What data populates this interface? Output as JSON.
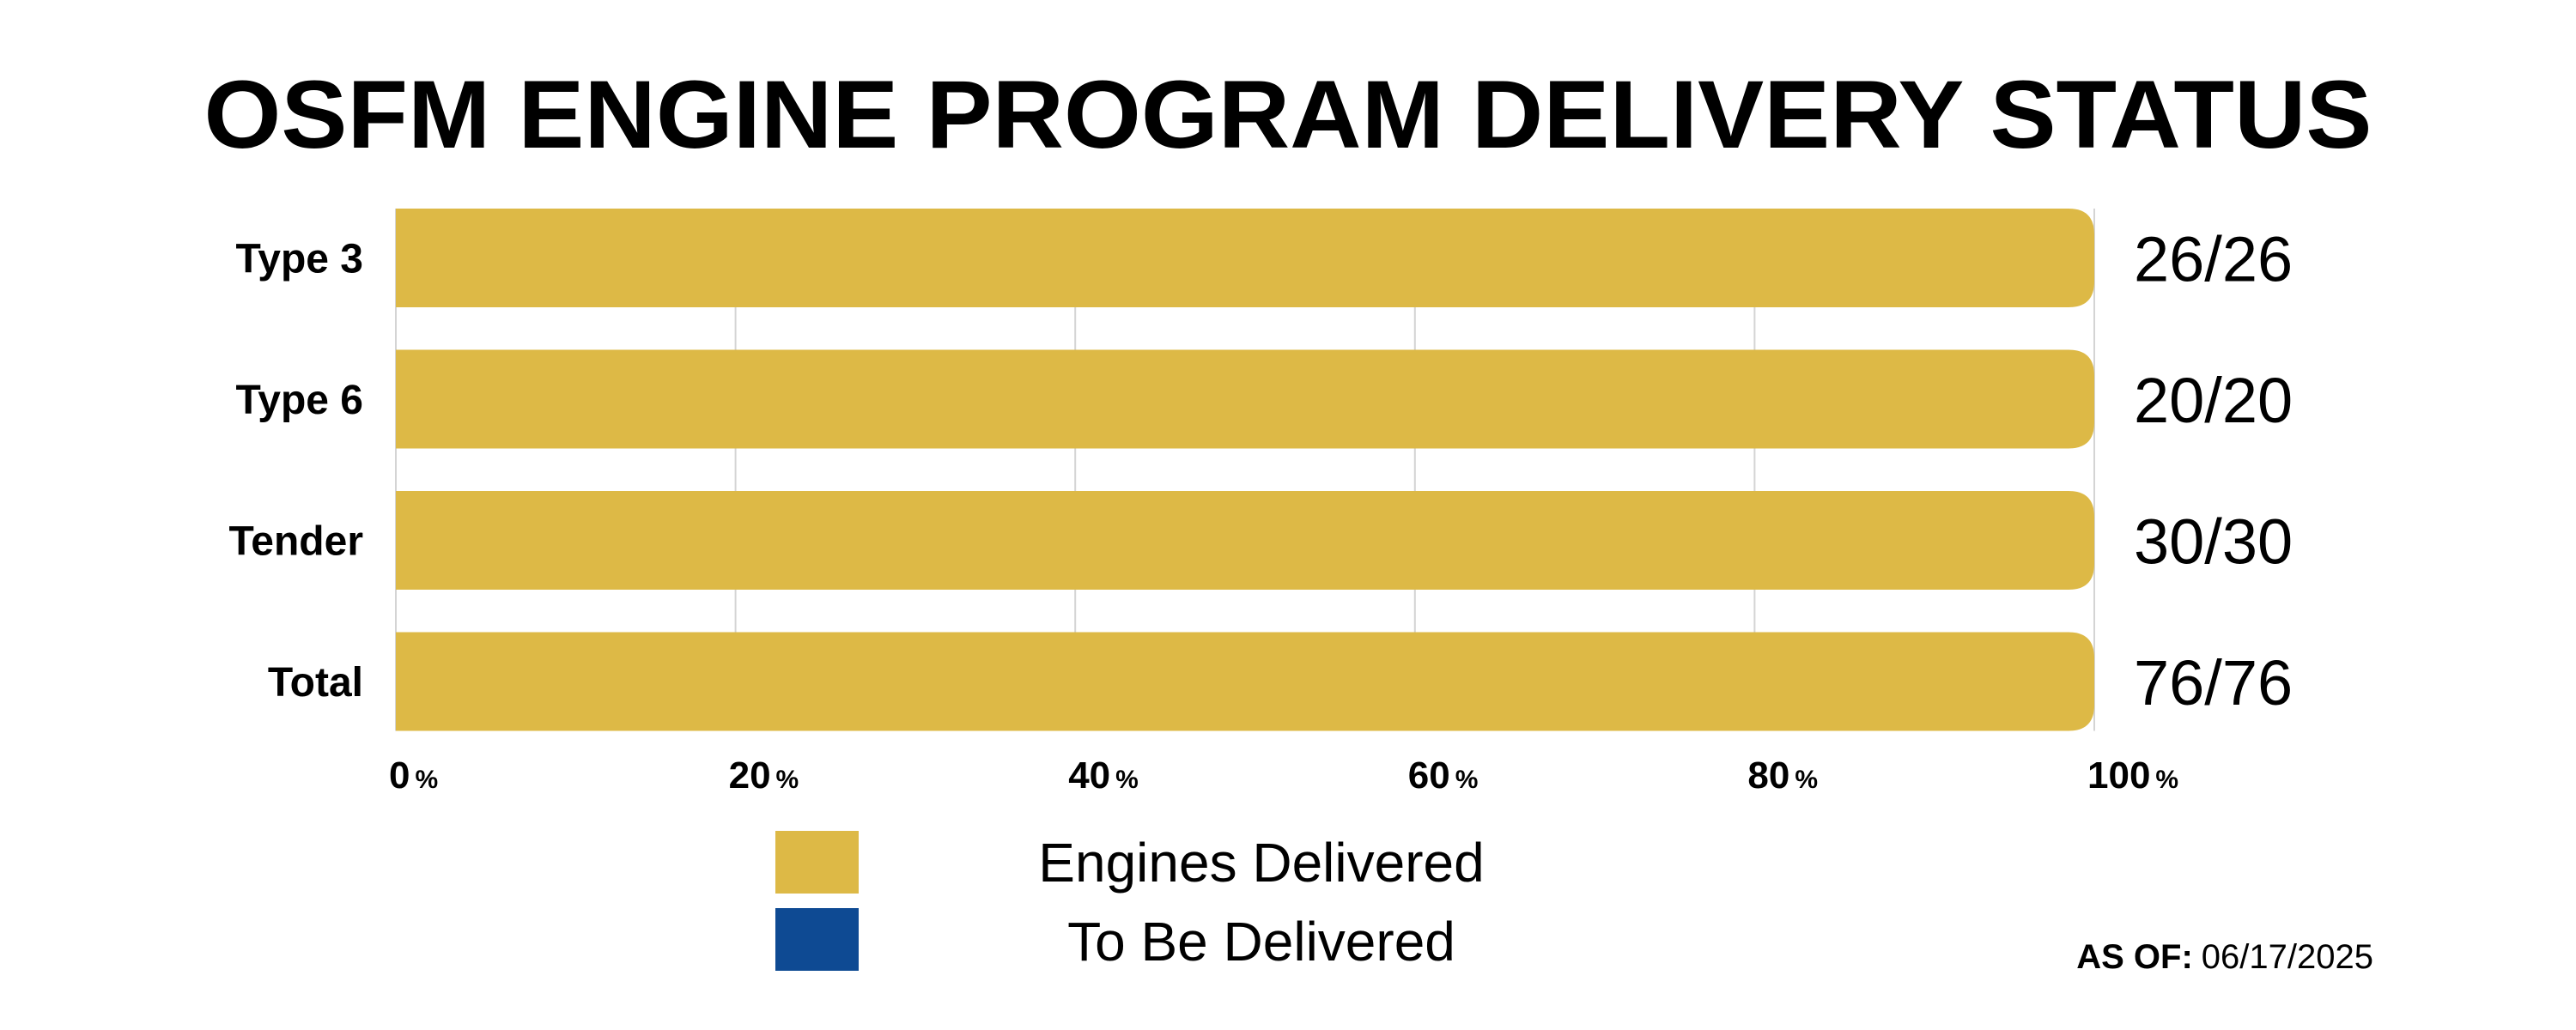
{
  "chart_data": {
    "type": "bar",
    "orientation": "horizontal",
    "stacked": true,
    "title": "OSFM ENGINE PROGRAM DELIVERY STATUS",
    "categories": [
      "Type 3",
      "Type 6",
      "Tender",
      "Total"
    ],
    "series": [
      {
        "name": "Engines Delivered",
        "color": "#DDB946",
        "values": [
          100,
          100,
          100,
          100
        ]
      },
      {
        "name": "To Be Delivered",
        "color": "#0E4A93",
        "values": [
          0,
          0,
          0,
          0
        ]
      }
    ],
    "data_labels": [
      "26/26",
      "20/20",
      "30/30",
      "76/76"
    ],
    "xlim": [
      0,
      100
    ],
    "x_ticks": [
      0,
      20,
      40,
      60,
      80,
      100
    ],
    "x_tick_labels": [
      "0",
      "20",
      "40",
      "60",
      "80",
      "100"
    ],
    "x_tick_suffix": "%",
    "grid": "vertical",
    "legend_position": "bottom-center",
    "annotation": {
      "label": "AS OF:",
      "value": "06/17/2025"
    }
  }
}
